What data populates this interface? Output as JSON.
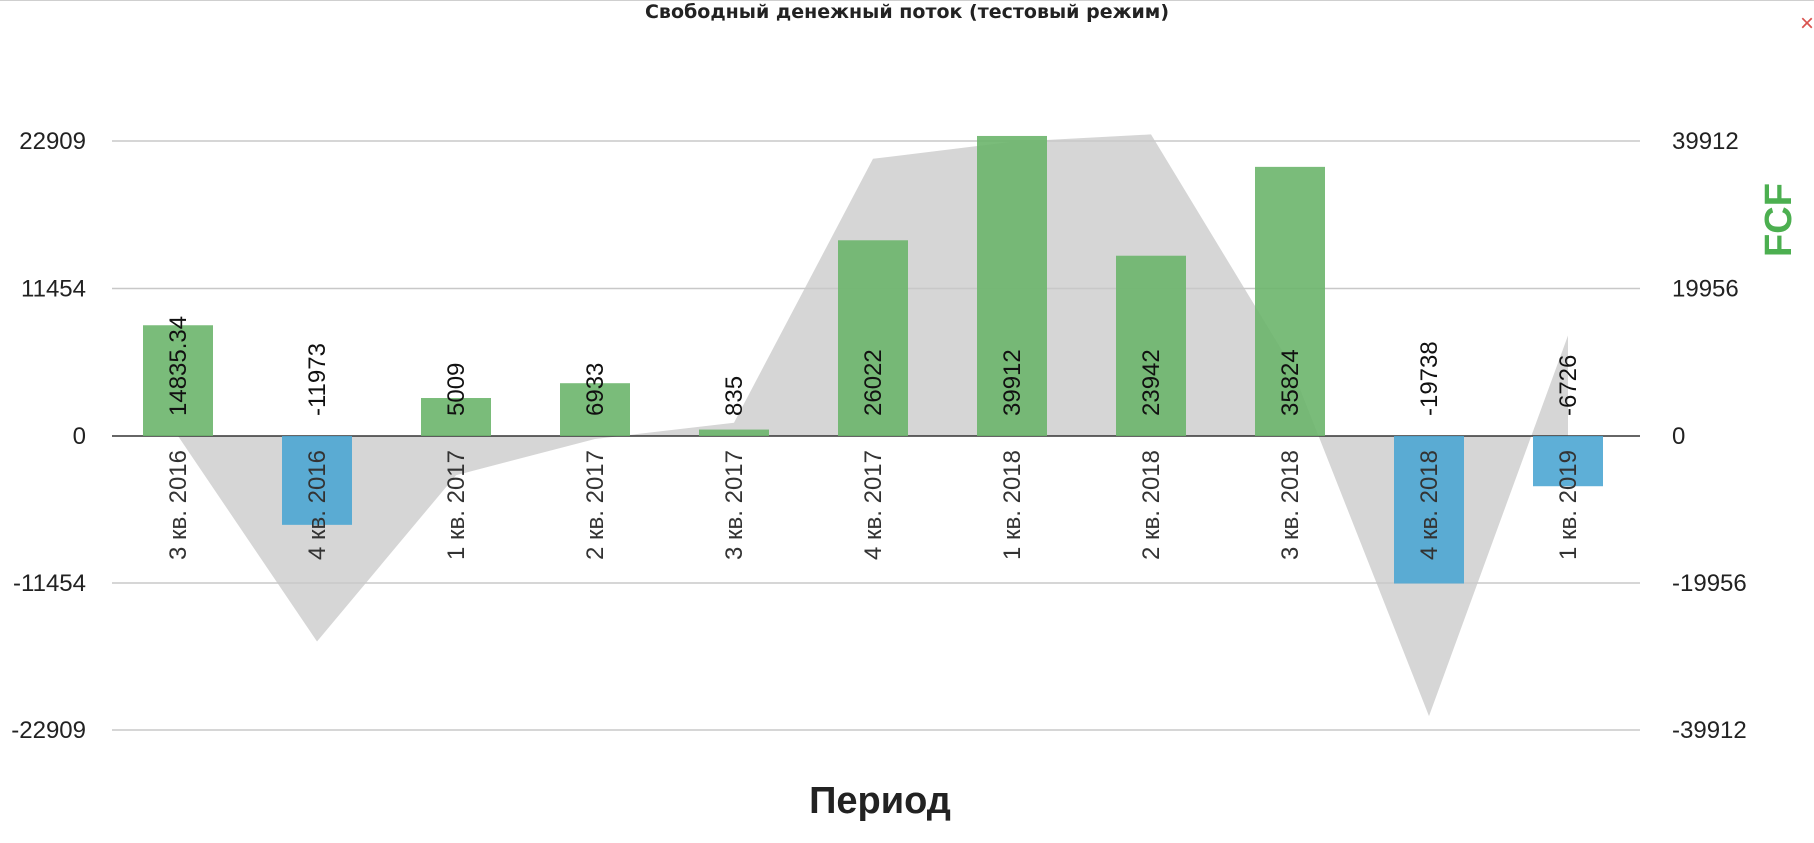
{
  "header": {
    "title": "Свободный денежный поток (тестовый режим)",
    "close_label": "×"
  },
  "chart_data": {
    "type": "bar",
    "title": "Свободный денежный поток (тестовый режим)",
    "xlabel": "Период",
    "ylabel": "FCF",
    "categories": [
      "3 кв. 2016",
      "4 кв. 2016",
      "1 кв. 2017",
      "2 кв. 2017",
      "3 кв. 2017",
      "4 кв. 2017",
      "1 кв. 2018",
      "2 кв. 2018",
      "3 кв. 2018",
      "4 кв. 2018",
      "1 кв. 2019"
    ],
    "bar_values": [
      8600,
      -6900,
      2950,
      4100,
      500,
      15200,
      23300,
      14000,
      20900,
      -11454,
      -3900
    ],
    "area_values": [
      0,
      -27800,
      -5300,
      -400,
      1800,
      37500,
      39800,
      40800,
      9800,
      -37900,
      13600
    ],
    "data_labels": [
      "14835.34",
      "-11973",
      "5009",
      "6933",
      "835",
      "26022",
      "39912",
      "23942",
      "35824",
      "-19738",
      "-6726"
    ],
    "left_axis": {
      "ylim": [
        -22909,
        22909
      ],
      "ticks": [
        "22909",
        "11454",
        "0",
        "-11454",
        "-22909"
      ]
    },
    "right_axis": {
      "ylim": [
        -39912,
        39912
      ],
      "ticks": [
        "39912",
        "19956",
        "0",
        "-19956",
        "-39912"
      ]
    },
    "grid": true,
    "colors": {
      "positive": "#6cb56c",
      "negative": "#4da6d3",
      "area": "#d6d6d6",
      "gridline": "#c8c8c8",
      "zero_line": "#333333",
      "axis_title": "#4caf50"
    }
  }
}
